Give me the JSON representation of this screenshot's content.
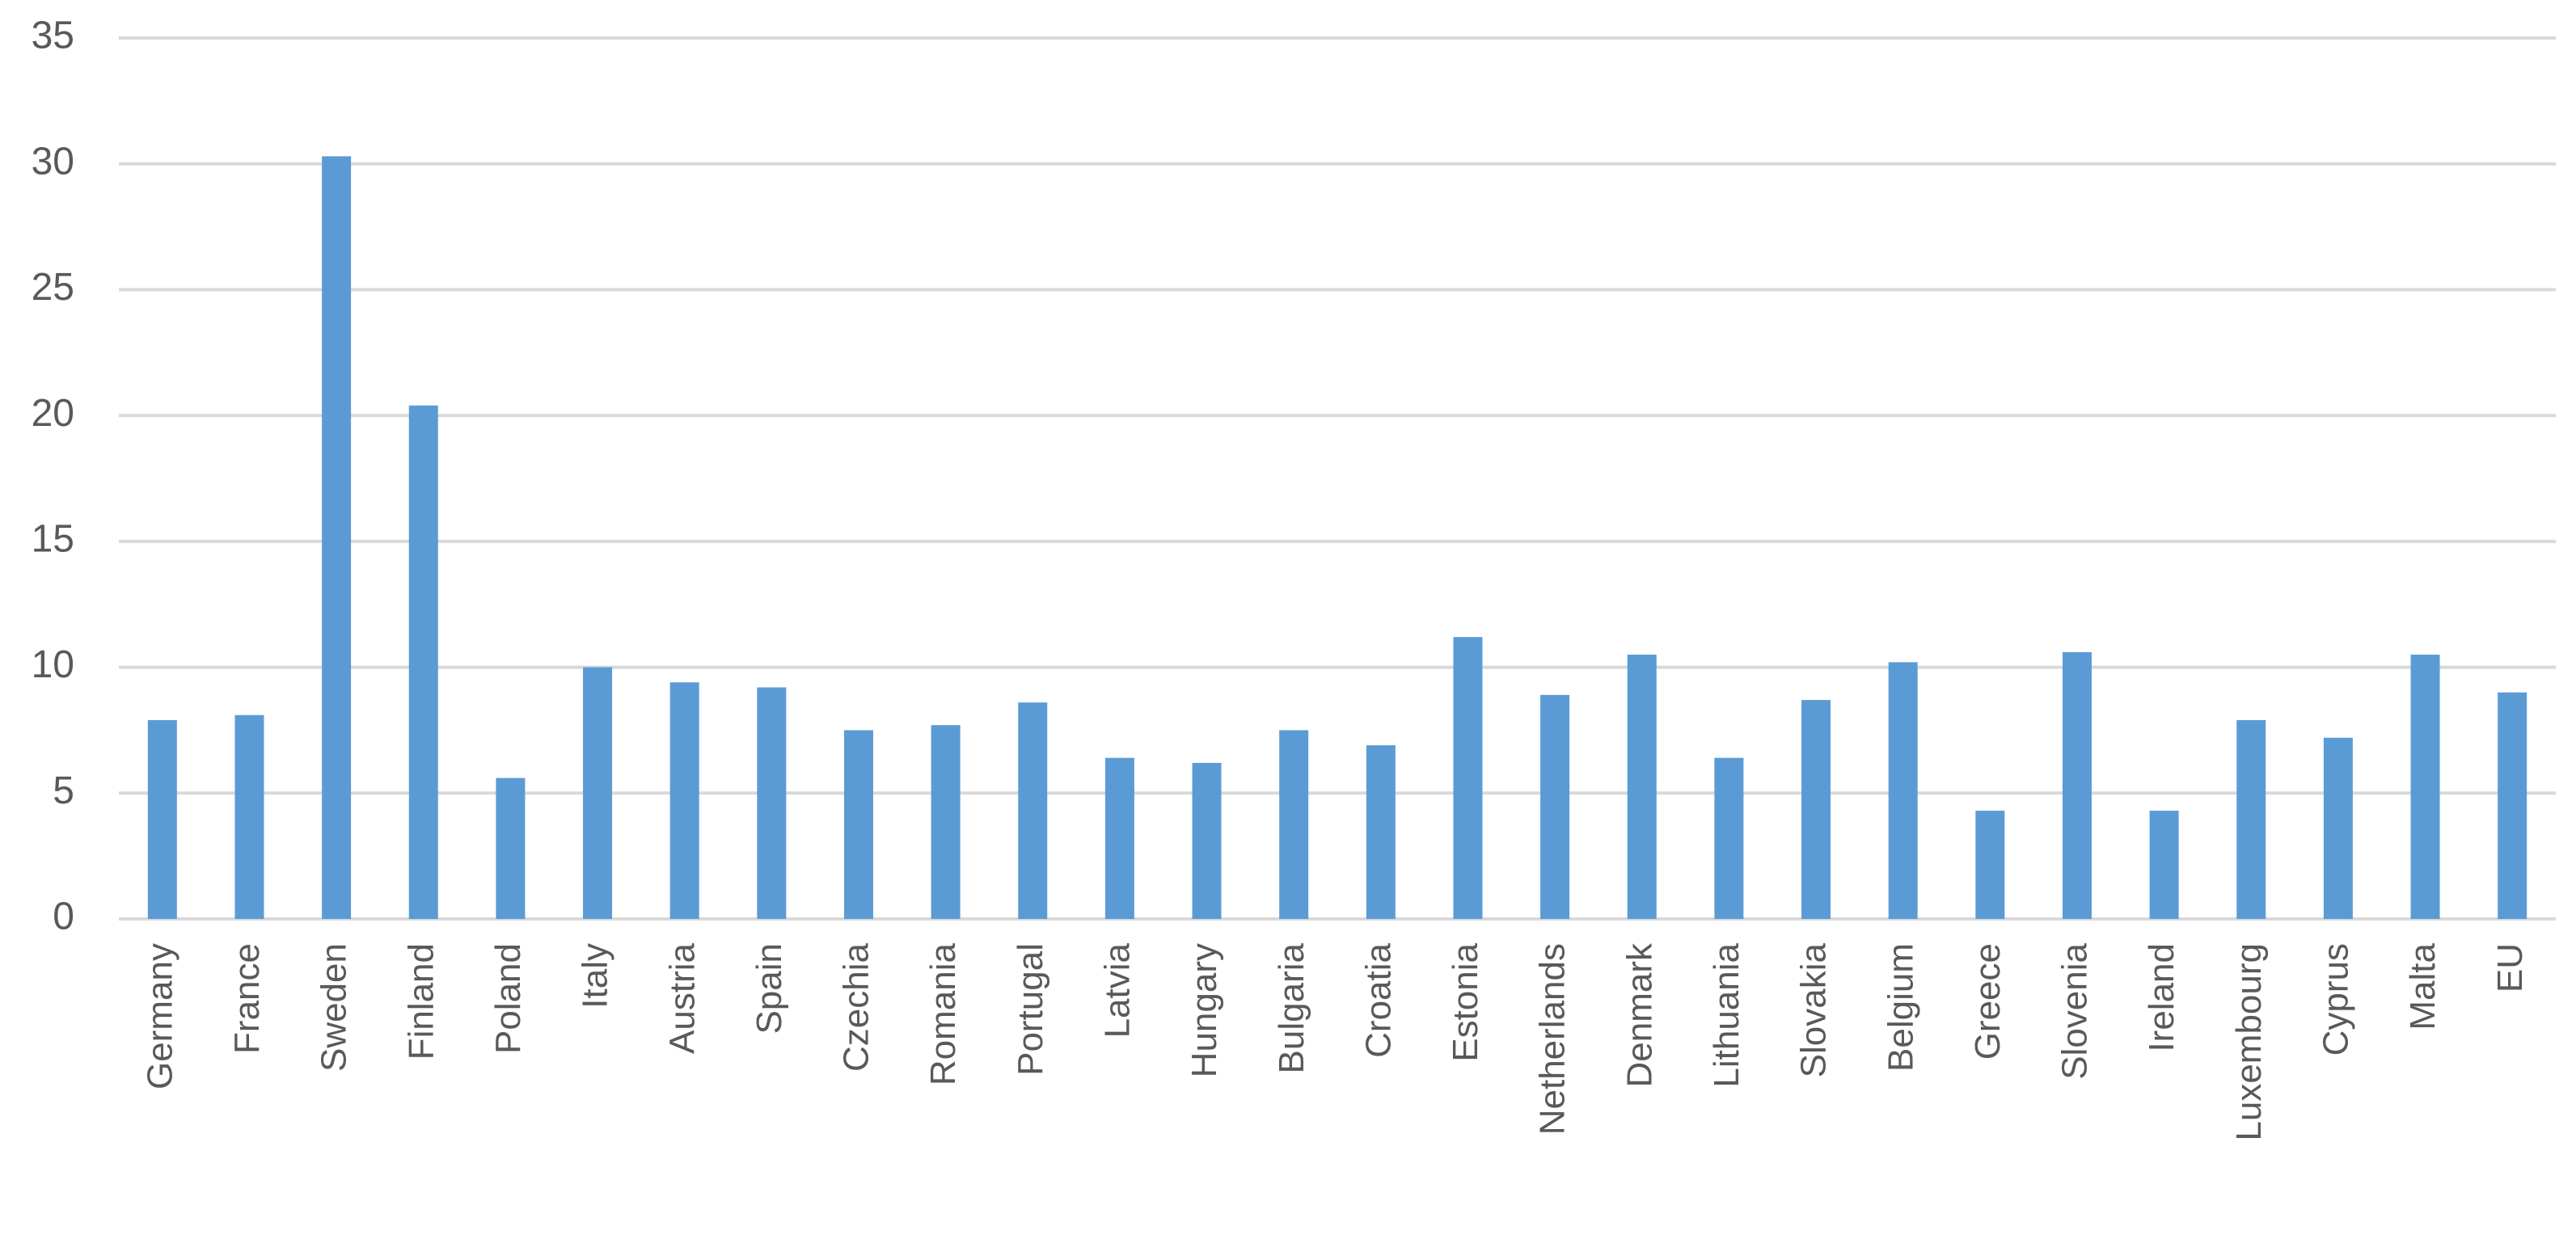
{
  "chart_data": {
    "type": "bar",
    "categories": [
      "Germany",
      "France",
      "Sweden",
      "Finland",
      "Poland",
      "Italy",
      "Austria",
      "Spain",
      "Czechia",
      "Romania",
      "Portugal",
      "Latvia",
      "Hungary",
      "Bulgaria",
      "Croatia",
      "Estonia",
      "Netherlands",
      "Denmark",
      "Lithuania",
      "Slovakia",
      "Belgium",
      "Greece",
      "Slovenia",
      "Ireland",
      "Luxembourg",
      "Cyprus",
      "Malta",
      "EU"
    ],
    "values": [
      7.9,
      8.1,
      30.3,
      20.4,
      5.6,
      10.0,
      9.4,
      9.2,
      7.5,
      7.7,
      8.6,
      6.4,
      6.2,
      7.5,
      6.9,
      11.2,
      8.9,
      10.5,
      6.4,
      8.7,
      10.2,
      4.3,
      10.6,
      4.3,
      7.9,
      7.2,
      10.5,
      9.0
    ],
    "color": "#5b9bd5",
    "ylim": [
      0,
      35
    ],
    "yticks": [
      0,
      5,
      10,
      15,
      20,
      25,
      30,
      35
    ],
    "grid": true
  }
}
